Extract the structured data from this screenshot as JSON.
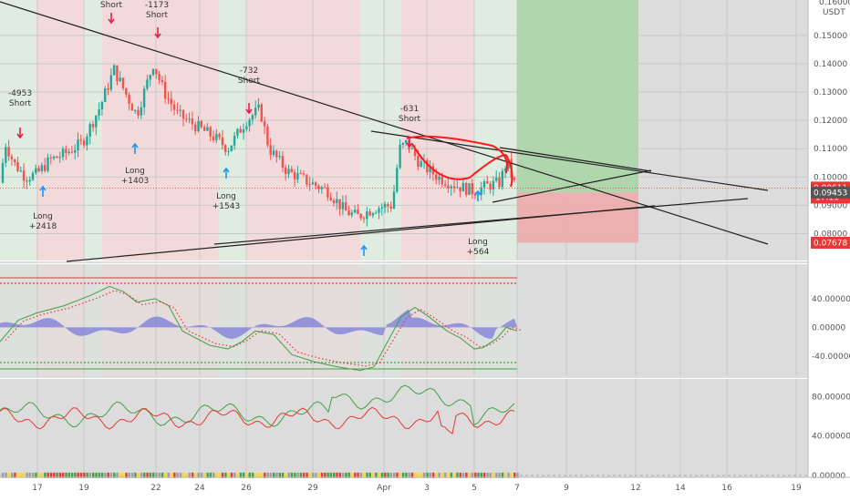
{
  "chart_data": {
    "type": "candlestick",
    "price_axis": {
      "unit": "USDT",
      "top_partial": "0.16000",
      "ticks": [
        "0.15000",
        "0.14000",
        "0.13000",
        "0.12000",
        "0.11000",
        "0.10000",
        "0.09000",
        "0.08000"
      ],
      "range": [
        0.0705,
        0.1625
      ]
    },
    "price_tags": [
      {
        "value": "0.09611",
        "sub": "17:11",
        "color": "#e53935",
        "price": 0.09611
      },
      {
        "value": "0.09453",
        "color": "#555555",
        "price": 0.09453
      },
      {
        "value": "0.07678",
        "color": "#e53935",
        "price": 0.07678
      }
    ],
    "x_axis": {
      "labels": [
        "17",
        "19",
        "22",
        "24",
        "26",
        "29",
        "Apr",
        "3",
        "5",
        "7",
        "9",
        "12",
        "14",
        "16",
        "19"
      ]
    },
    "annotations": [
      {
        "line1": "Short",
        "line2": "",
        "kind": "short"
      },
      {
        "line1": "-1173",
        "line2": "Short",
        "kind": "short"
      },
      {
        "line1": "-4953",
        "line2": "Short",
        "kind": "short"
      },
      {
        "line1": "-732",
        "line2": "Short",
        "kind": "short"
      },
      {
        "line1": "-631",
        "line2": "Short",
        "kind": "short"
      },
      {
        "line1": "Long",
        "line2": "+2418",
        "kind": "long"
      },
      {
        "line1": "Long",
        "line2": "+1403",
        "kind": "long"
      },
      {
        "line1": "Long",
        "line2": "+1543",
        "kind": "long"
      },
      {
        "line1": "Long",
        "line2": "+564",
        "kind": "long"
      }
    ],
    "position_box": {
      "entry": 0.09453,
      "target": 0.1625,
      "stop": 0.07678
    },
    "oscillator_1": {
      "ticks": [
        "40.00000",
        "0.00000",
        "-40.00000"
      ],
      "range": [
        -68,
        88
      ],
      "upper_level": 60,
      "lower_level": -60
    },
    "oscillator_2": {
      "ticks": [
        "80.00000",
        "40.00000",
        "0.00000"
      ],
      "range": [
        -2,
        98
      ]
    },
    "colors": {
      "bull": "#26a69a",
      "bear": "#ef5350",
      "trendline": "#222222",
      "cup": "#ff1a1a",
      "short_arrow": "#e91e4e",
      "long_arrow": "#2196f3",
      "zone_green": "#dfecdf",
      "zone_red": "#f3dada",
      "target_box": "#a8d5a6",
      "stop_box": "#f0a8a8"
    }
  }
}
